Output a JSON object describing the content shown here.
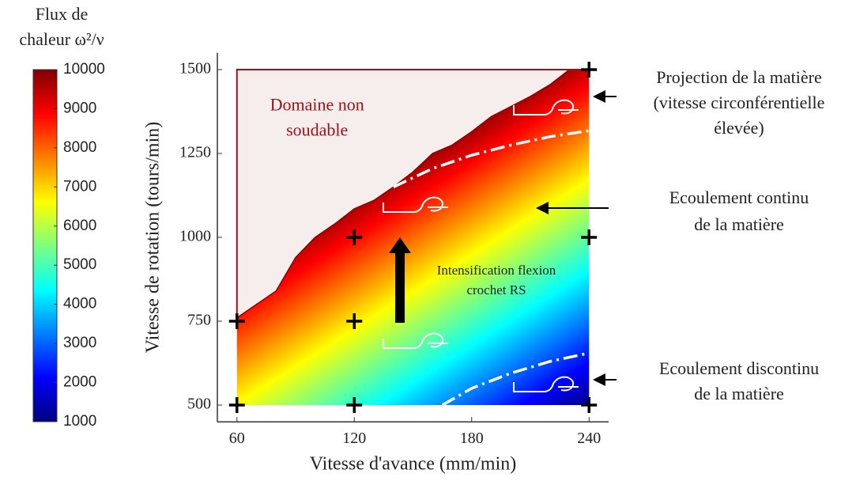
{
  "chart_data": {
    "type": "heatmap",
    "colorbar": {
      "title": [
        "Flux de",
        "chaleur ω²/ν"
      ],
      "lim": [
        1000,
        10000
      ],
      "ticks": [
        1000,
        2000,
        3000,
        4000,
        5000,
        6000,
        7000,
        8000,
        9000,
        10000
      ],
      "colors": [
        "#00007f",
        "#0000ff",
        "#007fff",
        "#00ffff",
        "#7fff7f",
        "#ffff00",
        "#ff7f00",
        "#ff0000",
        "#7f0000"
      ]
    },
    "xlabel": "Vitesse d'avance (mm/min)",
    "ylabel": "Vitesse de rotation (tours/min)",
    "xlim": [
      50,
      250
    ],
    "ylim": [
      450,
      1550
    ],
    "xticks": [
      60,
      120,
      180,
      240
    ],
    "yticks": [
      500,
      750,
      1000,
      1250,
      1500
    ],
    "boundary": {
      "x": [
        60,
        70,
        80,
        90,
        100,
        110,
        120,
        130,
        140,
        150,
        160,
        170,
        180,
        190,
        200,
        210,
        220,
        230
      ],
      "y": [
        760,
        800,
        840,
        940,
        1000,
        1040,
        1085,
        1110,
        1150,
        1195,
        1250,
        1275,
        1315,
        1360,
        1390,
        1420,
        1455,
        1500
      ]
    },
    "unweldable": {
      "label": [
        "Domaine non",
        "soudable"
      ],
      "color": "#a0101a",
      "fill": "#f6eeed"
    },
    "curves": [
      {
        "x": [
          140,
          160,
          180,
          200,
          220,
          240
        ],
        "y": [
          1150,
          1205,
          1245,
          1275,
          1300,
          1318
        ]
      },
      {
        "x": [
          165,
          180,
          200,
          220,
          240
        ],
        "y": [
          500,
          550,
          595,
          630,
          655
        ]
      }
    ],
    "points": {
      "x": [
        60,
        60,
        120,
        120,
        120,
        240,
        240,
        240
      ],
      "y": [
        500,
        750,
        500,
        750,
        1000,
        500,
        1000,
        1500
      ]
    },
    "annotations": [
      {
        "text": [
          "Projection de la matière",
          "(vitesse circonférentielle",
          "élevée)"
        ]
      },
      {
        "text": [
          "Ecoulement continu",
          "de la matière"
        ]
      },
      {
        "text": [
          "Ecoulement discontinu",
          "de la matière"
        ]
      },
      {
        "text": [
          "Intensification flexion",
          "crochet RS"
        ]
      }
    ]
  }
}
